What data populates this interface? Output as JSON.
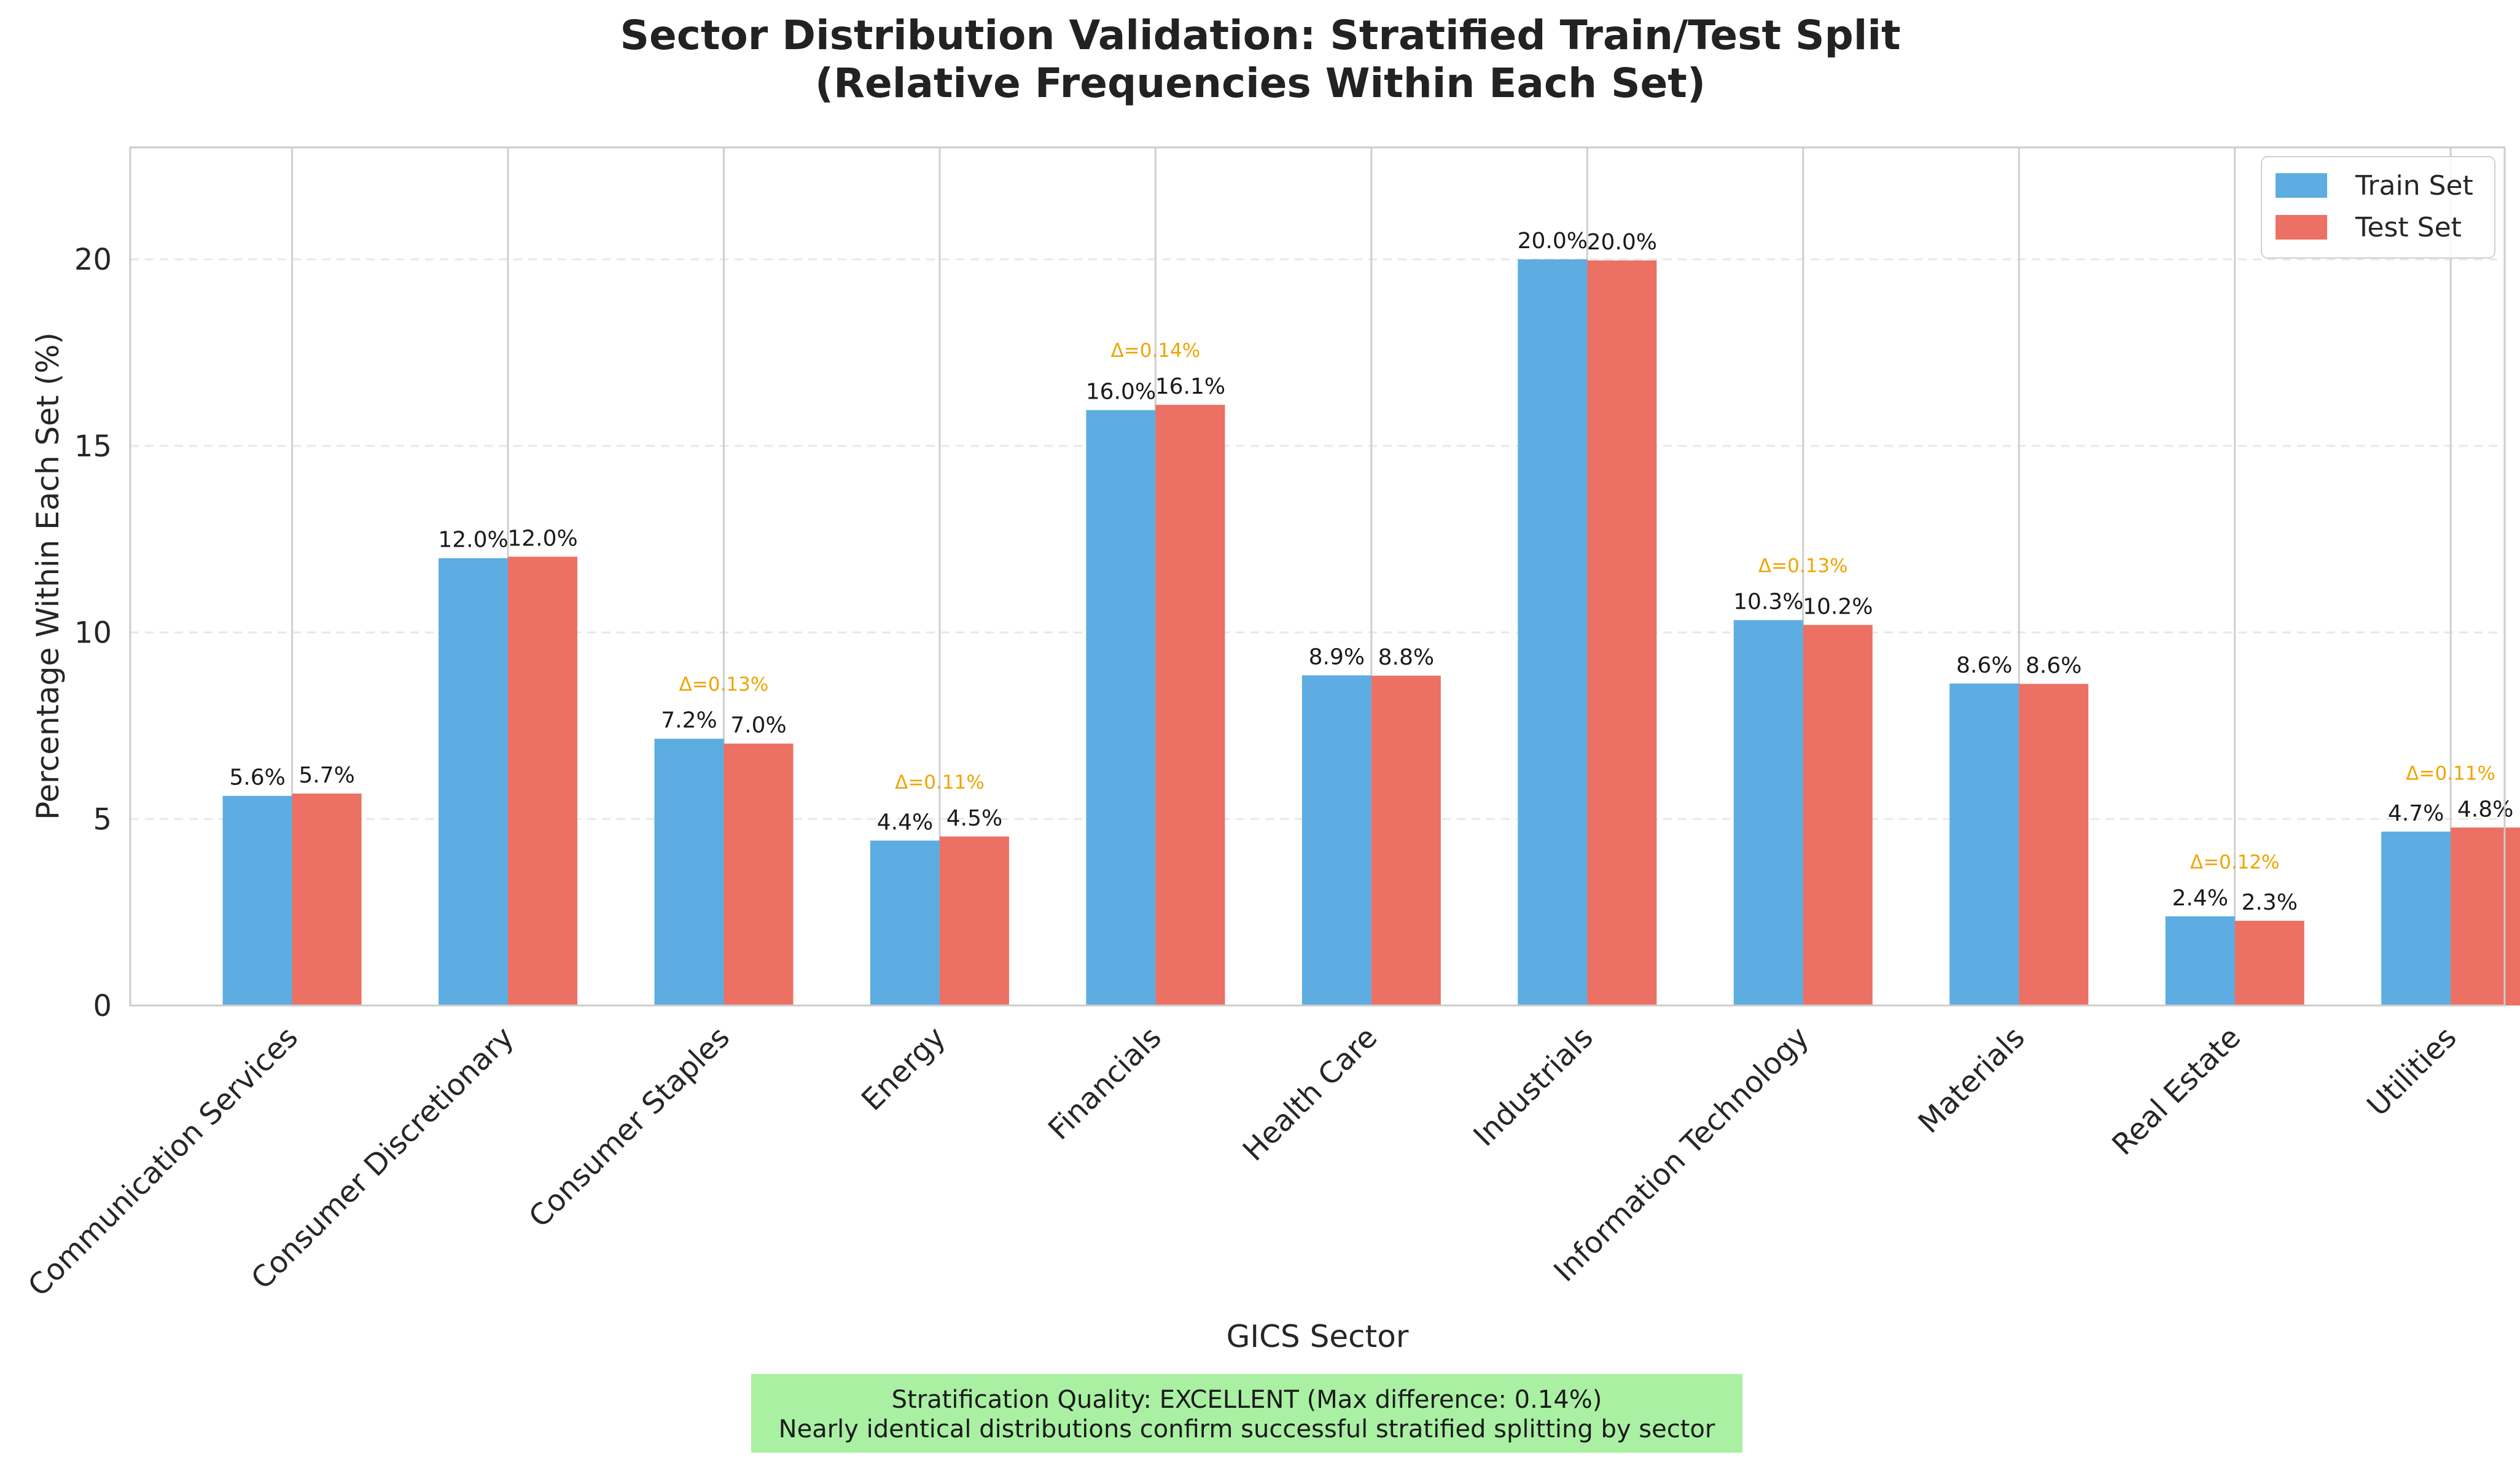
{
  "chart_data": {
    "type": "bar",
    "title": "Sector Distribution Validation: Stratified Train/Test Split",
    "subtitle": "(Relative Frequencies Within Each Set)",
    "xlabel": "GICS Sector",
    "ylabel": "Percentage Within Each Set (%)",
    "ylim": [
      0,
      23
    ],
    "yticks": [
      0,
      5,
      10,
      15,
      20
    ],
    "grid": true,
    "legend_position": "top-right",
    "categories": [
      "Communication Services",
      "Consumer Discretionary",
      "Consumer Staples",
      "Energy",
      "Financials",
      "Health Care",
      "Industrials",
      "Information Technology",
      "Materials",
      "Real Estate",
      "Utilities"
    ],
    "series": [
      {
        "name": "Train Set",
        "color": "#5dade2",
        "values": [
          5.62,
          11.99,
          7.15,
          4.42,
          15.96,
          8.85,
          20.0,
          10.33,
          8.63,
          2.39,
          4.66
        ],
        "labels": [
          "5.6%",
          "12.0%",
          "7.2%",
          "4.4%",
          "16.0%",
          "8.9%",
          "20.0%",
          "10.3%",
          "8.6%",
          "2.4%",
          "4.7%"
        ]
      },
      {
        "name": "Test Set",
        "color": "#ec7063",
        "values": [
          5.68,
          12.03,
          7.02,
          4.53,
          16.1,
          8.84,
          19.97,
          10.2,
          8.62,
          2.27,
          4.77
        ],
        "labels": [
          "5.7%",
          "12.0%",
          "7.0%",
          "4.5%",
          "16.1%",
          "8.8%",
          "20.0%",
          "10.2%",
          "8.6%",
          "2.3%",
          "4.8%"
        ]
      }
    ],
    "deltas": [
      "",
      "",
      "Δ=0.13%",
      "Δ=0.11%",
      "Δ=0.14%",
      "",
      "",
      "Δ=0.13%",
      "",
      "Δ=0.12%",
      "Δ=0.11%"
    ],
    "delta_color": "#f0a400"
  },
  "note": {
    "line1": "Stratification Quality: EXCELLENT (Max difference: 0.14%)",
    "line2": "Nearly identical distributions confirm successful stratified splitting by sector",
    "background": "#a9f0a3"
  }
}
